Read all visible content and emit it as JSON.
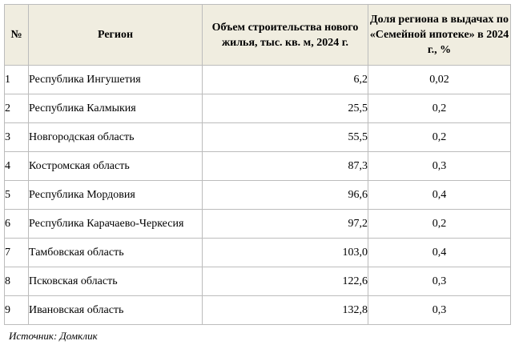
{
  "table": {
    "headers": {
      "num": "№",
      "region": "Регион",
      "volume": "Объем строительства нового жилья, тыс. кв. м, 2024 г.",
      "share": "Доля региона в выдачах по «Семейной ипотеке» в 2024 г., %"
    },
    "rows": [
      {
        "num": "1",
        "region": "Республика Ингушетия",
        "volume": "6,2",
        "share": "0,02"
      },
      {
        "num": "2",
        "region": "Республика Калмыкия",
        "volume": "25,5",
        "share": "0,2"
      },
      {
        "num": "3",
        "region": "Новгородская область",
        "volume": "55,5",
        "share": "0,2"
      },
      {
        "num": "4",
        "region": "Костромская область",
        "volume": "87,3",
        "share": "0,3"
      },
      {
        "num": "5",
        "region": "Республика Мордовия",
        "volume": "96,6",
        "share": "0,4"
      },
      {
        "num": "6",
        "region": "Республика Карачаево-Черкесия",
        "volume": "97,2",
        "share": "0,2"
      },
      {
        "num": "7",
        "region": "Тамбовская область",
        "volume": "103,0",
        "share": "0,4"
      },
      {
        "num": "8",
        "region": "Псковская область",
        "volume": "122,6",
        "share": "0,3"
      },
      {
        "num": "9",
        "region": "Ивановская область",
        "volume": "132,8",
        "share": "0,3"
      }
    ]
  },
  "source": "Источник: Домклик"
}
